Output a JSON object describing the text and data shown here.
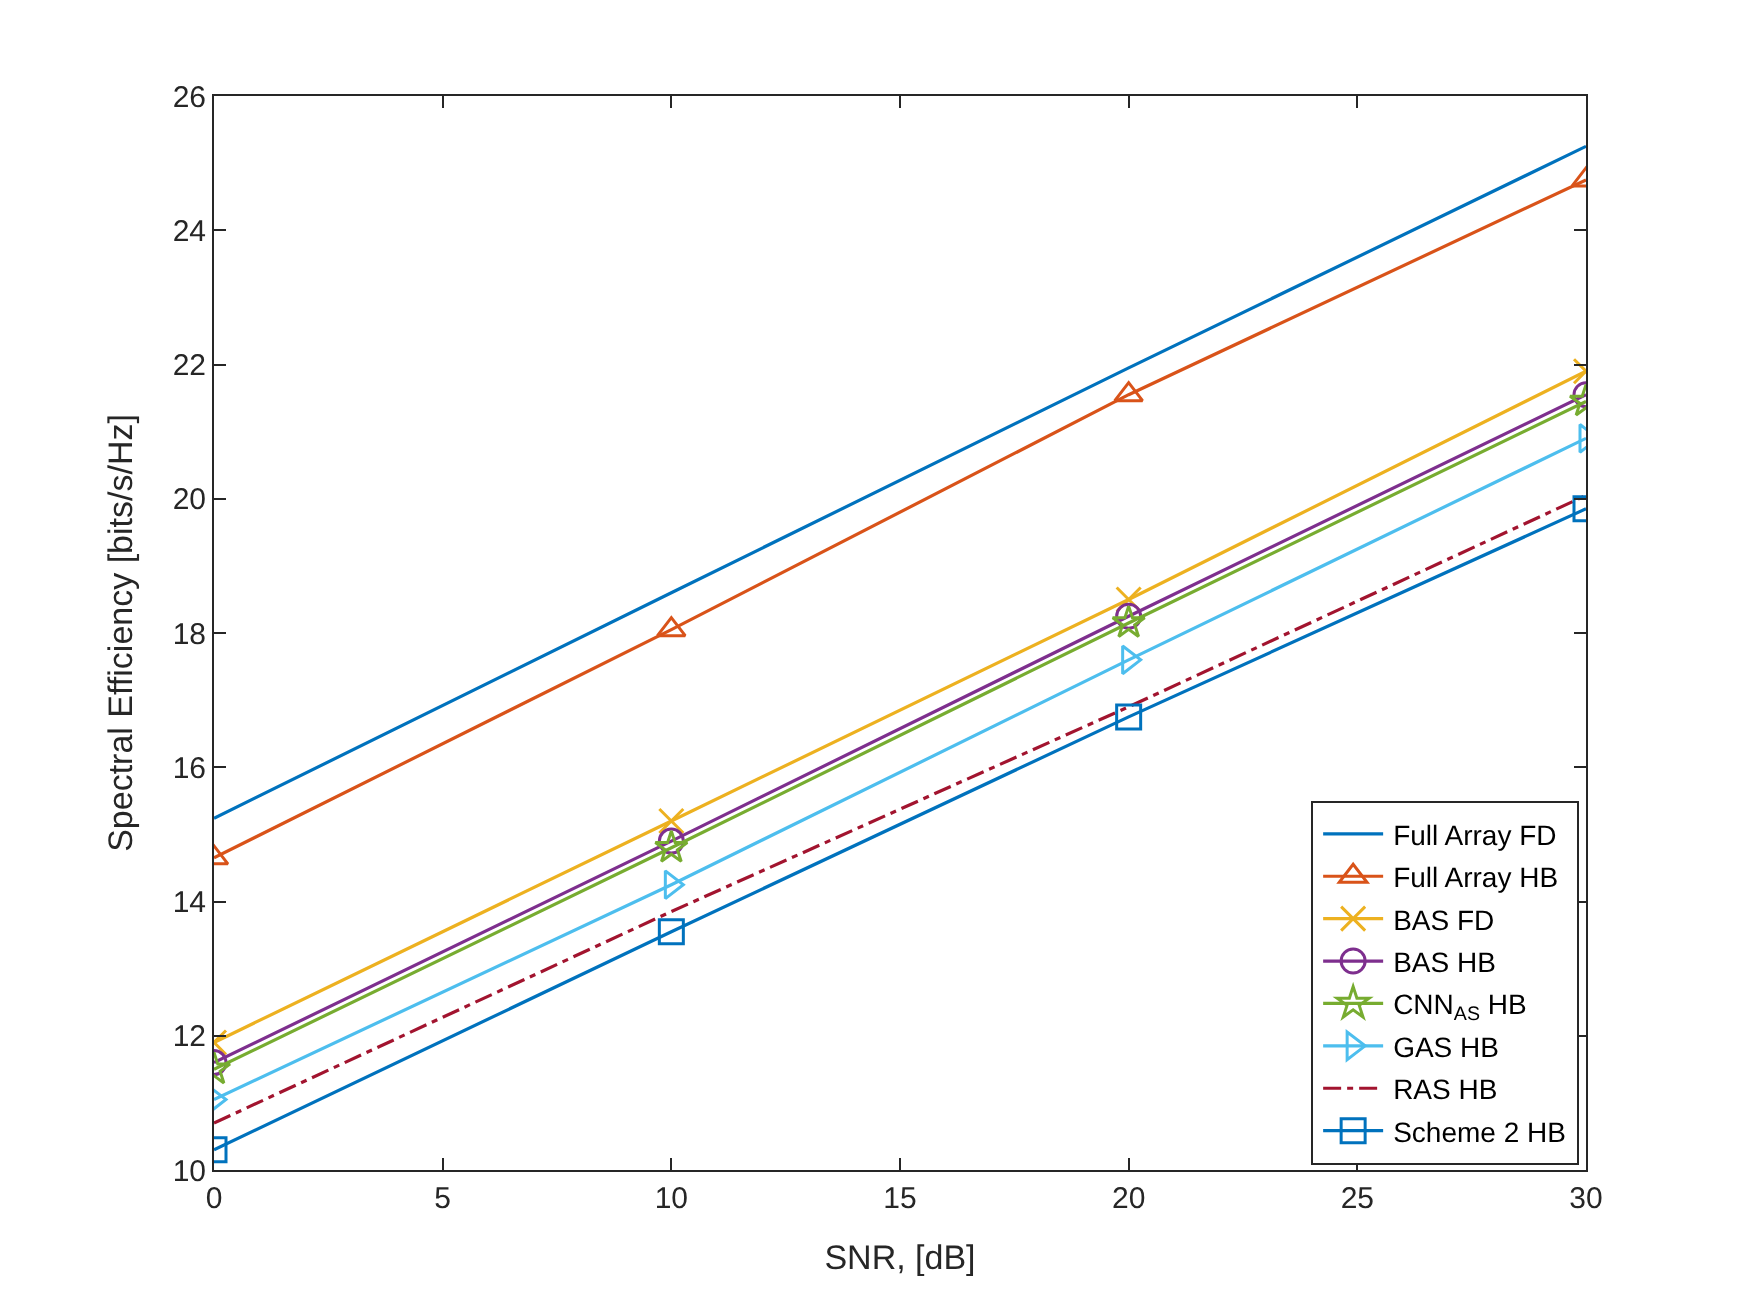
{
  "chart_data": {
    "type": "line",
    "xlabel": "SNR, [dB]",
    "ylabel": "Spectral Efficiency [bits/s/Hz]",
    "x": [
      0,
      10,
      20,
      30
    ],
    "xlim": [
      0,
      30
    ],
    "xticks": [
      0,
      5,
      10,
      15,
      20,
      25,
      30
    ],
    "ylim": [
      10,
      26
    ],
    "yticks": [
      10,
      12,
      14,
      16,
      18,
      20,
      22,
      24,
      26
    ],
    "legend": "bottom right",
    "series": [
      {
        "name": "Full Array FD",
        "color": "#0072bd",
        "marker": "none",
        "line_style": "solid",
        "values": [
          15.24,
          18.6,
          21.95,
          25.25
        ]
      },
      {
        "name": "Full Array HB",
        "color": "#d95319",
        "marker": "triangle",
        "line_style": "solid",
        "values": [
          14.65,
          18.05,
          21.55,
          24.75
        ]
      },
      {
        "name": "BAS FD",
        "color": "#edb120",
        "marker": "cross",
        "line_style": "solid",
        "values": [
          11.9,
          15.2,
          18.5,
          21.9
        ]
      },
      {
        "name": "BAS HB",
        "color": "#7e2f8e",
        "marker": "circle",
        "line_style": "solid",
        "values": [
          11.6,
          14.9,
          18.25,
          21.55
        ]
      },
      {
        "name": "CNN$_{AS}$ HB",
        "color": "#77ac30",
        "marker": "star",
        "line_style": "solid",
        "values": [
          11.5,
          14.8,
          18.15,
          21.45
        ]
      },
      {
        "name": "GAS HB",
        "color": "#4dbeee",
        "marker": "triangle-right",
        "line_style": "solid",
        "values": [
          11.05,
          14.25,
          17.6,
          20.9
        ]
      },
      {
        "name": "RAS HB",
        "color": "#a2142f",
        "marker": "none",
        "line_style": "dashdot",
        "values": [
          10.7,
          13.85,
          16.9,
          20.05
        ]
      },
      {
        "name": "Scheme 2 HB",
        "color": "#0072bd",
        "marker": "square",
        "line_style": "solid",
        "values": [
          10.3,
          13.55,
          16.75,
          19.85
        ]
      }
    ]
  }
}
